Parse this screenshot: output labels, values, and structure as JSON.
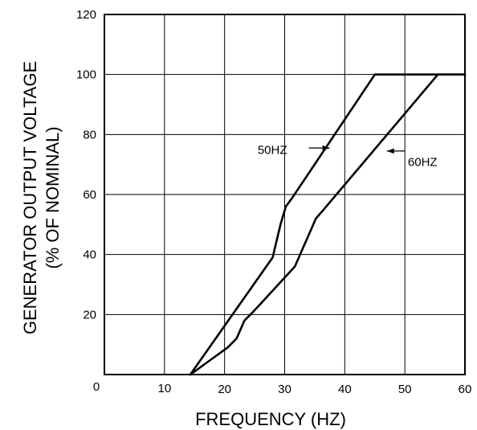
{
  "chart_data": {
    "type": "line",
    "title": "",
    "xlabel": "FREQUENCY (HZ)",
    "ylabel_line1": "GENERATOR OUTPUT VOLTAGE",
    "ylabel_line2": "(% OF NOMINAL)",
    "xlim": [
      0,
      60
    ],
    "ylim": [
      0,
      120
    ],
    "x_ticks": [
      0,
      10,
      20,
      30,
      40,
      50,
      60
    ],
    "y_ticks": [
      20,
      40,
      60,
      80,
      100,
      120
    ],
    "grid": true,
    "series": [
      {
        "name": "50HZ",
        "points": [
          [
            14.3,
            0
          ],
          [
            28.0,
            39
          ],
          [
            29.3,
            50
          ],
          [
            30.2,
            56
          ],
          [
            31.3,
            59
          ],
          [
            45.0,
            100
          ],
          [
            60.0,
            100
          ]
        ]
      },
      {
        "name": "60HZ",
        "points": [
          [
            14.3,
            0
          ],
          [
            20.5,
            9
          ],
          [
            22.0,
            12
          ],
          [
            23.3,
            18
          ],
          [
            24.8,
            21
          ],
          [
            31.7,
            36
          ],
          [
            33.0,
            42
          ],
          [
            35.2,
            52
          ],
          [
            36.5,
            55
          ],
          [
            55.5,
            100
          ],
          [
            60.0,
            100
          ]
        ]
      }
    ],
    "annotations": [
      {
        "text": "50HZ",
        "series": "50HZ",
        "x": 25.5,
        "y": 73.5,
        "arrow_from": [
          34.0,
          75.5
        ],
        "arrow_to": [
          37.5,
          75.5
        ]
      },
      {
        "text": "60HZ",
        "series": "60HZ",
        "x": 50.5,
        "y": 69.5,
        "arrow_from": [
          50.0,
          74.5
        ],
        "arrow_to": [
          47.0,
          74.5
        ]
      }
    ]
  }
}
